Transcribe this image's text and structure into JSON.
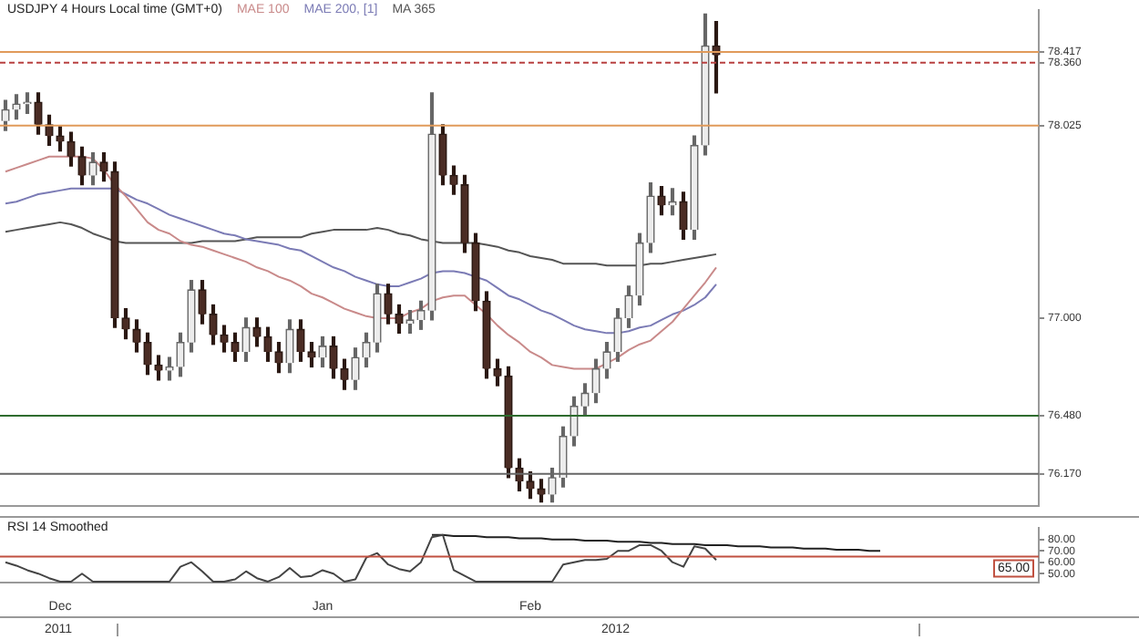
{
  "chart_data": [
    {
      "type": "candlestick",
      "title": "USDJPY 4 Hours Local time (GMT+0)",
      "legend": "top left",
      "tick_labels": "y",
      "categories": [
        null,
        null,
        null,
        null,
        null,
        null,
        null,
        null,
        null,
        null,
        null,
        null,
        null,
        null,
        null,
        null,
        null,
        null,
        null,
        null,
        null,
        null,
        null,
        null,
        null,
        null,
        null,
        null,
        null,
        null,
        null,
        null,
        null,
        null,
        null,
        null,
        null,
        null,
        null,
        null,
        null,
        null,
        null,
        null,
        null,
        null,
        null,
        null,
        null,
        null,
        null,
        null,
        null,
        null,
        null,
        null,
        null,
        null,
        null,
        null,
        null,
        null,
        null,
        null,
        null,
        null,
        null,
        null,
        null,
        null,
        null,
        null,
        null,
        null,
        null,
        null,
        null,
        null,
        null,
        null,
        null,
        null,
        null,
        null,
        null,
        null,
        null,
        null,
        null,
        null,
        null,
        null,
        null,
        null,
        null
      ],
      "ohlc": [
        [
          78.05,
          78.16,
          78.0,
          78.11
        ],
        [
          78.11,
          78.19,
          78.06,
          78.14
        ],
        [
          78.14,
          78.2,
          78.09,
          78.15
        ],
        [
          78.15,
          78.2,
          77.98,
          78.03
        ],
        [
          78.03,
          78.08,
          77.92,
          77.97
        ],
        [
          77.97,
          78.02,
          77.89,
          77.94
        ],
        [
          77.94,
          77.99,
          77.81,
          77.86
        ],
        [
          77.86,
          77.91,
          77.71,
          77.76
        ],
        [
          77.76,
          77.88,
          77.71,
          77.83
        ],
        [
          77.83,
          77.88,
          77.73,
          77.78
        ],
        [
          77.78,
          77.83,
          76.95,
          77.0
        ],
        [
          77.0,
          77.05,
          76.89,
          76.94
        ],
        [
          76.94,
          76.99,
          76.82,
          76.87
        ],
        [
          76.87,
          76.92,
          76.7,
          76.75
        ],
        [
          76.75,
          76.8,
          76.67,
          76.72
        ],
        [
          76.72,
          76.79,
          76.67,
          76.74
        ],
        [
          76.74,
          76.92,
          76.69,
          76.87
        ],
        [
          76.87,
          77.2,
          76.82,
          77.15
        ],
        [
          77.15,
          77.2,
          76.97,
          77.02
        ],
        [
          77.02,
          77.07,
          76.86,
          76.91
        ],
        [
          76.91,
          76.96,
          76.82,
          76.87
        ],
        [
          76.87,
          76.92,
          76.77,
          76.82
        ],
        [
          76.82,
          77.0,
          76.77,
          76.95
        ],
        [
          76.95,
          77.0,
          76.85,
          76.9
        ],
        [
          76.9,
          76.95,
          76.77,
          76.82
        ],
        [
          76.82,
          76.87,
          76.71,
          76.76
        ],
        [
          76.76,
          76.99,
          76.71,
          76.94
        ],
        [
          76.94,
          76.99,
          76.77,
          76.82
        ],
        [
          76.82,
          76.87,
          76.74,
          76.79
        ],
        [
          76.79,
          76.9,
          76.74,
          76.85
        ],
        [
          76.85,
          76.9,
          76.68,
          76.73
        ],
        [
          76.73,
          76.78,
          76.62,
          76.67
        ],
        [
          76.67,
          76.84,
          76.62,
          76.79
        ],
        [
          76.79,
          76.92,
          76.74,
          76.87
        ],
        [
          76.87,
          77.18,
          76.82,
          77.13
        ],
        [
          77.13,
          77.18,
          76.97,
          77.02
        ],
        [
          77.02,
          77.07,
          76.92,
          76.97
        ],
        [
          76.97,
          77.04,
          76.92,
          76.99
        ],
        [
          76.99,
          77.09,
          76.94,
          77.04
        ],
        [
          77.04,
          78.2,
          76.99,
          77.98
        ],
        [
          77.98,
          78.03,
          77.71,
          77.76
        ],
        [
          77.76,
          77.81,
          77.66,
          77.71
        ],
        [
          77.71,
          77.76,
          77.35,
          77.4
        ],
        [
          77.4,
          77.45,
          77.04,
          77.09
        ],
        [
          77.09,
          77.14,
          76.68,
          76.73
        ],
        [
          76.73,
          76.78,
          76.64,
          76.69
        ],
        [
          76.69,
          76.74,
          76.15,
          76.2
        ],
        [
          76.2,
          76.25,
          76.08,
          76.13
        ],
        [
          76.13,
          76.18,
          76.04,
          76.09
        ],
        [
          76.09,
          76.14,
          76.02,
          76.06
        ],
        [
          76.06,
          76.2,
          76.02,
          76.15
        ],
        [
          76.15,
          76.42,
          76.1,
          76.37
        ],
        [
          76.37,
          76.58,
          76.32,
          76.53
        ],
        [
          76.53,
          76.65,
          76.48,
          76.6
        ],
        [
          76.6,
          76.78,
          76.55,
          76.73
        ],
        [
          76.73,
          76.87,
          76.68,
          76.82
        ],
        [
          76.82,
          77.05,
          76.77,
          77.0
        ],
        [
          77.0,
          77.17,
          76.95,
          77.12
        ],
        [
          77.12,
          77.45,
          77.07,
          77.4
        ],
        [
          77.4,
          77.72,
          77.35,
          77.65
        ],
        [
          77.65,
          77.7,
          77.55,
          77.6
        ],
        [
          77.6,
          77.69,
          77.55,
          77.62
        ],
        [
          77.62,
          77.67,
          77.42,
          77.47
        ],
        [
          77.47,
          77.97,
          77.42,
          77.92
        ],
        [
          77.92,
          78.62,
          77.87,
          78.45
        ],
        [
          78.45,
          78.58,
          78.2,
          78.4
        ],
        null,
        null,
        null,
        null,
        null,
        null,
        null,
        null,
        null,
        null,
        null,
        null,
        null,
        null,
        null,
        null,
        null,
        null,
        null,
        null,
        null,
        null,
        null,
        null,
        null,
        null,
        null,
        null,
        null
      ],
      "series": [
        {
          "name": "MAE 100",
          "type": "line",
          "color": "#c98a8a",
          "values": [
            77.78,
            77.8,
            77.82,
            77.84,
            77.86,
            77.86,
            77.86,
            77.86,
            77.85,
            77.79,
            77.71,
            77.65,
            77.58,
            77.51,
            77.47,
            77.45,
            77.41,
            77.39,
            77.38,
            77.36,
            77.34,
            77.32,
            77.3,
            77.27,
            77.25,
            77.22,
            77.2,
            77.17,
            77.13,
            77.11,
            77.08,
            77.05,
            77.03,
            77.01,
            77.0,
            77.0,
            77.0,
            77.03,
            77.05,
            77.09,
            77.11,
            77.12,
            77.12,
            77.07,
            77.02,
            76.96,
            76.91,
            76.87,
            76.82,
            76.79,
            76.75,
            76.74,
            76.73,
            76.73,
            76.73,
            76.76,
            76.79,
            76.83,
            76.86,
            76.88,
            76.93,
            76.98,
            77.05,
            77.12,
            77.19,
            77.27,
            null,
            null,
            null,
            null,
            null,
            null,
            null,
            null,
            null,
            null,
            null,
            null,
            null,
            null,
            null,
            null,
            null,
            null,
            null,
            null,
            null,
            null,
            null,
            null,
            null,
            null,
            null,
            null,
            null
          ]
        },
        {
          "name": "MAE 200, [1]",
          "type": "line",
          "color": "#7b7bb5",
          "values": [
            77.61,
            77.62,
            77.64,
            77.66,
            77.67,
            77.68,
            77.69,
            77.69,
            77.69,
            77.69,
            77.69,
            77.66,
            77.63,
            77.61,
            77.58,
            77.55,
            77.53,
            77.51,
            77.49,
            77.47,
            77.45,
            77.44,
            77.42,
            77.41,
            77.4,
            77.39,
            77.37,
            77.36,
            77.33,
            77.3,
            77.27,
            77.25,
            77.22,
            77.2,
            77.18,
            77.17,
            77.17,
            77.19,
            77.21,
            77.24,
            77.25,
            77.25,
            77.24,
            77.22,
            77.2,
            77.16,
            77.12,
            77.1,
            77.07,
            77.04,
            77.02,
            76.99,
            76.96,
            76.94,
            76.93,
            76.92,
            76.92,
            76.93,
            76.95,
            76.96,
            76.99,
            77.02,
            77.04,
            77.07,
            77.11,
            77.18,
            null,
            null,
            null,
            null,
            null,
            null,
            null,
            null,
            null,
            null,
            null,
            null,
            null,
            null,
            null,
            null,
            null,
            null,
            null,
            null,
            null,
            null,
            null,
            null,
            null,
            null,
            null,
            null,
            null
          ]
        },
        {
          "name": "MA 365",
          "type": "line",
          "color": "#555555",
          "values": [
            77.46,
            77.47,
            77.48,
            77.49,
            77.5,
            77.51,
            77.5,
            77.48,
            77.45,
            77.43,
            77.41,
            77.4,
            77.4,
            77.4,
            77.4,
            77.4,
            77.4,
            77.4,
            77.41,
            77.41,
            77.41,
            77.41,
            77.42,
            77.43,
            77.43,
            77.43,
            77.43,
            77.43,
            77.45,
            77.46,
            77.47,
            77.47,
            77.47,
            77.47,
            77.48,
            77.47,
            77.45,
            77.44,
            77.42,
            77.41,
            77.4,
            77.4,
            77.4,
            77.4,
            77.39,
            77.38,
            77.36,
            77.35,
            77.33,
            77.32,
            77.31,
            77.29,
            77.29,
            77.29,
            77.29,
            77.28,
            77.28,
            77.28,
            77.28,
            77.29,
            77.29,
            77.3,
            77.31,
            77.32,
            77.33,
            77.34,
            null,
            null,
            null,
            null,
            null,
            null,
            null,
            null,
            null,
            null,
            null,
            null,
            null,
            null,
            null,
            null,
            null,
            null,
            null,
            null,
            null,
            null,
            null,
            null,
            null,
            null,
            null,
            null,
            null
          ]
        }
      ],
      "ylim": [
        76.0,
        78.64
      ],
      "yticks": [
        {
          "value": 78.417,
          "label": "78.417"
        },
        {
          "value": 78.36,
          "label": "78.360"
        },
        {
          "value": 78.025,
          "label": "78.025"
        },
        {
          "value": 77,
          "label": "77.000"
        },
        {
          "value": 76.48,
          "label": "76.480"
        },
        {
          "value": 76.17,
          "label": "76.170"
        }
      ],
      "ref_lines": [
        {
          "axis": "y",
          "value": 78.417,
          "color": "#e09a5a",
          "line_style": "solid"
        },
        {
          "axis": "y",
          "value": 78.36,
          "color": "#b84040",
          "line_style": "dashed"
        },
        {
          "axis": "y",
          "value": 78.025,
          "color": "#e09a5a",
          "line_style": "solid"
        },
        {
          "axis": "y",
          "value": 76.48,
          "color": "#2e6b2e",
          "line_style": "solid"
        },
        {
          "axis": "y",
          "value": 76.17,
          "color": "#666666",
          "line_style": "solid"
        }
      ]
    },
    {
      "type": "line",
      "title": "RSI 14 Smoothed",
      "categories": [
        null,
        null,
        null,
        null,
        null,
        "Dec",
        null,
        null,
        null,
        null,
        null,
        null,
        null,
        null,
        null,
        null,
        null,
        null,
        null,
        null,
        null,
        null,
        null,
        null,
        null,
        null,
        null,
        null,
        null,
        "Jan",
        null,
        null,
        null,
        null,
        null,
        null,
        null,
        null,
        null,
        null,
        null,
        null,
        null,
        null,
        null,
        null,
        null,
        null,
        "Feb",
        null,
        null,
        null,
        null,
        null,
        null,
        null,
        null,
        null,
        null,
        null,
        null,
        null,
        null,
        null,
        null,
        null,
        null,
        null,
        null,
        null,
        null,
        null,
        null,
        null,
        null,
        null,
        null,
        null,
        null,
        null,
        null,
        null,
        null,
        null,
        null,
        null,
        null,
        null,
        null,
        null,
        null,
        null,
        null,
        null,
        null
      ],
      "series": [
        {
          "color": "#444444",
          "values": [
            60,
            57,
            53,
            50,
            46,
            43,
            43,
            50,
            43,
            43,
            43,
            43,
            43,
            43,
            43,
            43,
            56,
            60,
            52,
            43,
            43,
            45,
            52,
            46,
            43,
            47,
            55,
            47,
            48,
            53,
            50,
            43,
            45,
            64,
            68,
            58,
            54,
            52,
            60,
            82,
            84,
            53,
            48,
            43,
            43,
            43,
            43,
            43,
            43,
            43,
            43,
            58,
            60,
            62,
            62,
            63,
            70,
            70,
            75,
            75,
            70,
            60,
            56,
            74,
            72,
            62,
            null,
            null,
            null,
            null,
            null,
            null,
            null,
            null,
            null,
            null,
            null,
            null,
            null,
            null,
            null,
            null,
            null,
            null,
            null,
            null,
            null,
            null,
            null,
            null,
            null,
            null,
            null,
            null,
            null
          ]
        },
        {
          "type": "line",
          "color": "#222222",
          "values": [
            null,
            null,
            null,
            null,
            null,
            null,
            null,
            null,
            null,
            null,
            null,
            null,
            null,
            null,
            null,
            null,
            null,
            null,
            null,
            null,
            null,
            null,
            null,
            null,
            null,
            null,
            null,
            null,
            null,
            null,
            null,
            null,
            null,
            null,
            null,
            null,
            null,
            null,
            null,
            84,
            84,
            83,
            83,
            83,
            82,
            82,
            82,
            81,
            81,
            81,
            80,
            80,
            80,
            79,
            79,
            79,
            78,
            78,
            78,
            77,
            77,
            76,
            76,
            76,
            75,
            75,
            75,
            74,
            74,
            74,
            73,
            73,
            73,
            72,
            72,
            72,
            71,
            71,
            71,
            70,
            70,
            null,
            null,
            null,
            null,
            null,
            null,
            null,
            null,
            null,
            null,
            null,
            null,
            null,
            null
          ]
        }
      ],
      "ylim": [
        42,
        90
      ],
      "yticks": [
        {
          "value": 80,
          "label": "80.00"
        },
        {
          "value": 70,
          "label": "70.00"
        },
        {
          "value": 60,
          "label": "60.00"
        },
        {
          "value": 50,
          "label": "50.00"
        }
      ],
      "ref_lines": [
        {
          "axis": "y",
          "value": 65,
          "label": "65.00",
          "color": "#c05040",
          "line_style": "solid"
        }
      ],
      "annotations": [
        "2011",
        "2012"
      ]
    }
  ]
}
